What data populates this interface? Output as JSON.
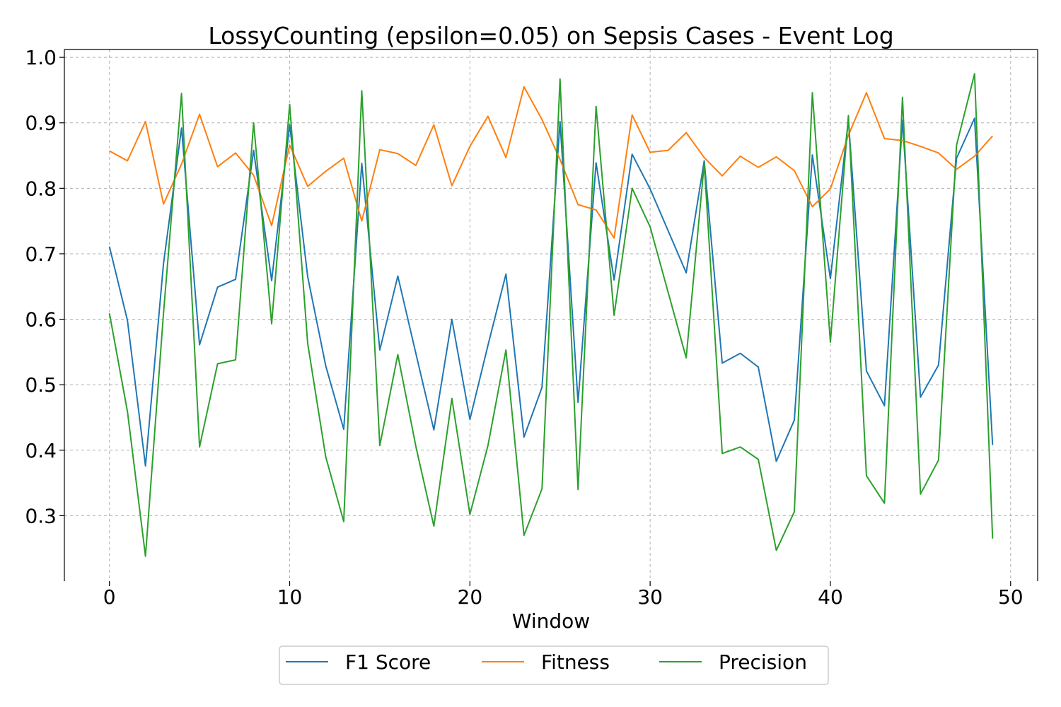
{
  "chart_data": {
    "type": "line",
    "title": "LossyCounting (epsilon=0.05) on Sepsis Cases - Event Log",
    "xlabel": "Window",
    "ylabel": "",
    "xlim": [
      -2.5,
      51.5
    ],
    "ylim": [
      0.2,
      1.012
    ],
    "xticks": [
      0,
      10,
      20,
      30,
      40,
      50
    ],
    "xtick_labels": [
      "0",
      "10",
      "20",
      "30",
      "40",
      "50"
    ],
    "yticks": [
      0.3,
      0.4,
      0.5,
      0.6,
      0.7,
      0.8,
      0.9,
      1.0
    ],
    "ytick_labels": [
      "0.3",
      "0.4",
      "0.5",
      "0.6",
      "0.7",
      "0.8",
      "0.9",
      "1.0"
    ],
    "grid": true,
    "legend_position": "bottom-center",
    "x": [
      0,
      1,
      2,
      3,
      4,
      5,
      6,
      7,
      8,
      9,
      10,
      11,
      12,
      13,
      14,
      15,
      16,
      17,
      18,
      19,
      20,
      21,
      22,
      23,
      24,
      25,
      26,
      27,
      28,
      29,
      30,
      31,
      32,
      33,
      34,
      35,
      36,
      37,
      38,
      39,
      40,
      41,
      42,
      43,
      44,
      45,
      46,
      47,
      48,
      49
    ],
    "series": [
      {
        "name": "F1 Score",
        "color": "#1f77b4",
        "values": [
          0.711,
          0.598,
          0.376,
          0.685,
          0.892,
          0.561,
          0.649,
          0.661,
          0.858,
          0.659,
          0.897,
          0.665,
          0.529,
          0.432,
          0.838,
          0.553,
          0.666,
          0.548,
          0.431,
          0.6,
          0.447,
          0.56,
          0.669,
          0.42,
          0.496,
          0.902,
          0.473,
          0.839,
          0.66,
          0.852,
          0.799,
          0.735,
          0.671,
          0.842,
          0.533,
          0.548,
          0.527,
          0.383,
          0.446,
          0.851,
          0.662,
          0.904,
          0.521,
          0.468,
          0.904,
          0.481,
          0.53,
          0.846,
          0.907,
          0.408
        ]
      },
      {
        "name": "Fitness",
        "color": "#ff7f0e",
        "values": [
          0.857,
          0.842,
          0.902,
          0.776,
          0.837,
          0.913,
          0.833,
          0.854,
          0.82,
          0.743,
          0.866,
          0.803,
          0.826,
          0.846,
          0.75,
          0.859,
          0.853,
          0.835,
          0.897,
          0.804,
          0.864,
          0.91,
          0.847,
          0.955,
          0.905,
          0.844,
          0.775,
          0.767,
          0.724,
          0.912,
          0.855,
          0.858,
          0.885,
          0.847,
          0.819,
          0.849,
          0.832,
          0.848,
          0.827,
          0.772,
          0.799,
          0.881,
          0.946,
          0.876,
          0.873,
          0.864,
          0.854,
          0.829,
          0.849,
          0.88
        ]
      },
      {
        "name": "Precision",
        "color": "#2ca02c",
        "values": [
          0.609,
          0.459,
          0.238,
          0.609,
          0.945,
          0.405,
          0.532,
          0.538,
          0.9,
          0.593,
          0.928,
          0.563,
          0.39,
          0.291,
          0.949,
          0.407,
          0.546,
          0.406,
          0.284,
          0.479,
          0.302,
          0.407,
          0.553,
          0.27,
          0.341,
          0.967,
          0.34,
          0.925,
          0.606,
          0.8,
          0.741,
          0.641,
          0.541,
          0.838,
          0.395,
          0.405,
          0.386,
          0.247,
          0.306,
          0.946,
          0.565,
          0.911,
          0.361,
          0.319,
          0.939,
          0.333,
          0.385,
          0.866,
          0.975,
          0.265
        ]
      }
    ]
  }
}
